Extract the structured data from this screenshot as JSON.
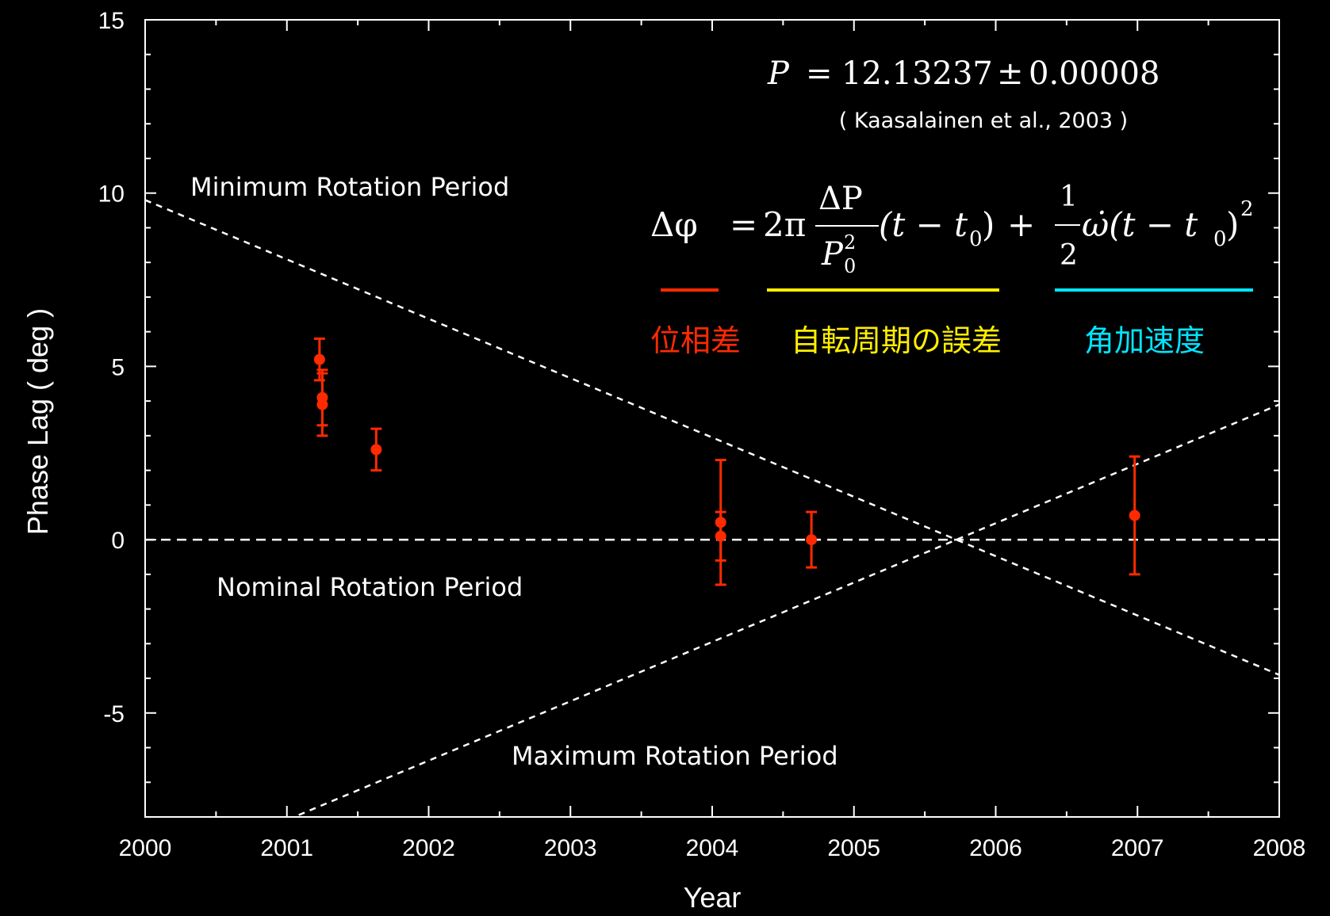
{
  "chart_data": {
    "type": "scatter",
    "xlabel": "Year",
    "ylabel": "Phase Lag ( deg )",
    "xlim": [
      2000,
      2008
    ],
    "ylim": [
      -8,
      15
    ],
    "xticks": [
      2000,
      2001,
      2002,
      2003,
      2004,
      2005,
      2006,
      2007,
      2008
    ],
    "yticks": [
      -5,
      0,
      5,
      10,
      15
    ],
    "xtick_labels": [
      "2000",
      "2001",
      "2002",
      "2003",
      "2004",
      "2005",
      "2006",
      "2007",
      "2008"
    ],
    "ytick_labels": [
      "-5",
      "0",
      "5",
      "10",
      "15"
    ],
    "grid": false,
    "series": [
      {
        "color": "#ff2a00",
        "marker": "circle",
        "error_bars": true,
        "points": [
          {
            "x": 2001.23,
            "y": 5.2,
            "err_low": 0.6,
            "err_high": 0.6
          },
          {
            "x": 2001.25,
            "y": 4.1,
            "err_low": 0.8,
            "err_high": 0.8
          },
          {
            "x": 2001.25,
            "y": 3.9,
            "err_low": 0.9,
            "err_high": 0.9
          },
          {
            "x": 2001.63,
            "y": 2.6,
            "err_low": 0.6,
            "err_high": 0.6
          },
          {
            "x": 2004.06,
            "y": 0.5,
            "err_low": 1.1,
            "err_high": 1.8
          },
          {
            "x": 2004.06,
            "y": 0.1,
            "err_low": 1.4,
            "err_high": 0.7
          },
          {
            "x": 2004.7,
            "y": 0.0,
            "err_low": 0.8,
            "err_high": 0.8
          },
          {
            "x": 2006.98,
            "y": 0.7,
            "err_low": 1.7,
            "err_high": 1.7
          }
        ]
      }
    ],
    "reference_lines": [
      {
        "label": "Minimum Rotation Period",
        "style": "dashed",
        "color": "#ffffff",
        "x": [
          2000,
          2008
        ],
        "y": [
          9.8,
          -3.9
        ]
      },
      {
        "label": "Nominal Rotation Period",
        "style": "dashed",
        "color": "#ffffff",
        "x": [
          2000,
          2008
        ],
        "y": [
          0,
          0
        ]
      },
      {
        "label": "Maximum Rotation Period",
        "style": "dashed",
        "color": "#ffffff",
        "x": [
          2000,
          2008
        ],
        "y": [
          -9.8,
          3.9
        ]
      }
    ],
    "annotations": {
      "period": {
        "lhs": "P",
        "eq": "=",
        "value": "12.13237",
        "pm": "±",
        "error": "0.00008"
      },
      "citation": "( Kaasalainen et al., 2003 )",
      "formula": {
        "lhs": "Δφ",
        "eq": "=",
        "two_pi": "2π",
        "num": "ΔP",
        "den": "P",
        "den_sup": "2",
        "den_sub": "0",
        "term1": "(t − t",
        "sub0": "0",
        "close": ")",
        "plus": "+",
        "half_num": "1",
        "half_den": "2",
        "omega": "ω̇(t − t",
        "sup2": "2"
      },
      "legend": [
        {
          "text": "位相差",
          "color": "#ff2a00"
        },
        {
          "text": "自転周期の誤差",
          "color": "#ffee00"
        },
        {
          "text": "角加速度",
          "color": "#00e5ff"
        }
      ]
    }
  }
}
